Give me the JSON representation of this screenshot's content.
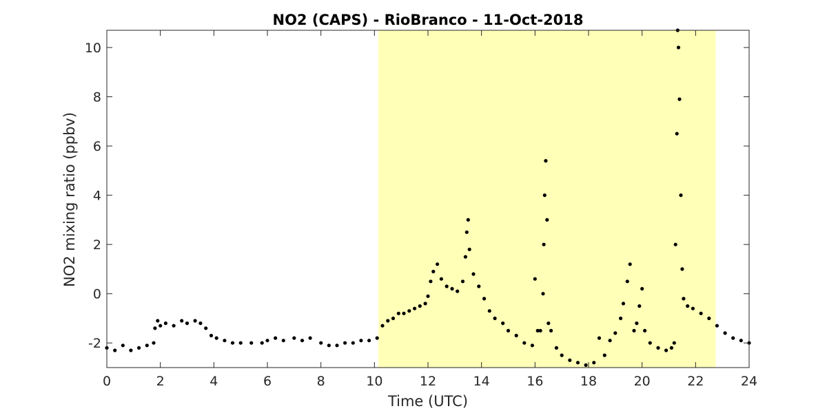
{
  "chart_data": {
    "type": "scatter",
    "title": "NO2 (CAPS) - RioBranco - 11-Oct-2018",
    "xlabel": "Time (UTC)",
    "ylabel": "NO2 mixing ratio (ppbv)",
    "xlim": [
      0,
      24
    ],
    "ylim": [
      -3,
      10.7
    ],
    "xticks": [
      "0",
      "2",
      "4",
      "6",
      "8",
      "10",
      "12",
      "14",
      "16",
      "18",
      "20",
      "22",
      "24"
    ],
    "yticks": [
      "-2",
      "0",
      "2",
      "4",
      "6",
      "8",
      "10"
    ],
    "grid": false,
    "shaded_region": {
      "x_start": 10.15,
      "x_end": 22.75,
      "color": "#ffffb8"
    },
    "marker_color": "#000000",
    "series": [
      {
        "points": [
          [
            0.0,
            -2.2
          ],
          [
            0.3,
            -2.3
          ],
          [
            0.6,
            -2.1
          ],
          [
            0.9,
            -2.3
          ],
          [
            1.2,
            -2.2
          ],
          [
            1.5,
            -2.1
          ],
          [
            1.75,
            -2.0
          ],
          [
            1.8,
            -1.4
          ],
          [
            1.9,
            -1.1
          ],
          [
            2.0,
            -1.3
          ],
          [
            2.2,
            -1.2
          ],
          [
            2.5,
            -1.3
          ],
          [
            2.8,
            -1.1
          ],
          [
            3.0,
            -1.2
          ],
          [
            3.3,
            -1.1
          ],
          [
            3.5,
            -1.2
          ],
          [
            3.7,
            -1.4
          ],
          [
            3.9,
            -1.7
          ],
          [
            4.1,
            -1.8
          ],
          [
            4.4,
            -1.9
          ],
          [
            4.7,
            -2.0
          ],
          [
            5.0,
            -2.0
          ],
          [
            5.4,
            -2.0
          ],
          [
            5.8,
            -2.0
          ],
          [
            6.0,
            -1.9
          ],
          [
            6.3,
            -1.8
          ],
          [
            6.6,
            -1.9
          ],
          [
            7.0,
            -1.8
          ],
          [
            7.3,
            -1.9
          ],
          [
            7.6,
            -1.8
          ],
          [
            8.0,
            -2.0
          ],
          [
            8.3,
            -2.1
          ],
          [
            8.6,
            -2.1
          ],
          [
            8.9,
            -2.0
          ],
          [
            9.2,
            -2.0
          ],
          [
            9.5,
            -1.9
          ],
          [
            9.8,
            -1.9
          ],
          [
            10.1,
            -1.8
          ],
          [
            10.3,
            -1.3
          ],
          [
            10.5,
            -1.1
          ],
          [
            10.7,
            -1.0
          ],
          [
            10.9,
            -0.8
          ],
          [
            11.1,
            -0.8
          ],
          [
            11.3,
            -0.7
          ],
          [
            11.5,
            -0.6
          ],
          [
            11.7,
            -0.5
          ],
          [
            11.9,
            -0.4
          ],
          [
            12.0,
            -0.1
          ],
          [
            12.1,
            0.5
          ],
          [
            12.2,
            0.9
          ],
          [
            12.35,
            1.2
          ],
          [
            12.5,
            0.6
          ],
          [
            12.7,
            0.3
          ],
          [
            12.9,
            0.2
          ],
          [
            13.1,
            0.1
          ],
          [
            13.3,
            0.5
          ],
          [
            13.4,
            1.5
          ],
          [
            13.45,
            2.5
          ],
          [
            13.5,
            3.0
          ],
          [
            13.55,
            1.8
          ],
          [
            13.7,
            0.8
          ],
          [
            13.9,
            0.3
          ],
          [
            14.1,
            -0.2
          ],
          [
            14.3,
            -0.7
          ],
          [
            14.5,
            -1.0
          ],
          [
            14.8,
            -1.2
          ],
          [
            15.0,
            -1.5
          ],
          [
            15.3,
            -1.7
          ],
          [
            15.6,
            -2.0
          ],
          [
            15.9,
            -2.1
          ],
          [
            16.0,
            0.6
          ],
          [
            16.1,
            -1.5
          ],
          [
            16.2,
            -1.5
          ],
          [
            16.3,
            0.0
          ],
          [
            16.33,
            2.0
          ],
          [
            16.36,
            4.0
          ],
          [
            16.4,
            5.4
          ],
          [
            16.45,
            3.0
          ],
          [
            16.5,
            -1.2
          ],
          [
            16.6,
            -1.5
          ],
          [
            16.8,
            -2.2
          ],
          [
            17.0,
            -2.5
          ],
          [
            17.3,
            -2.7
          ],
          [
            17.6,
            -2.8
          ],
          [
            17.9,
            -2.9
          ],
          [
            18.2,
            -2.8
          ],
          [
            18.4,
            -1.8
          ],
          [
            18.6,
            -2.5
          ],
          [
            18.8,
            -1.9
          ],
          [
            19.0,
            -1.6
          ],
          [
            19.2,
            -1.0
          ],
          [
            19.3,
            -0.4
          ],
          [
            19.45,
            0.5
          ],
          [
            19.55,
            1.2
          ],
          [
            19.7,
            -1.5
          ],
          [
            19.8,
            -1.2
          ],
          [
            19.9,
            -0.5
          ],
          [
            20.0,
            0.2
          ],
          [
            20.1,
            -1.5
          ],
          [
            20.3,
            -2.0
          ],
          [
            20.6,
            -2.2
          ],
          [
            20.9,
            -2.3
          ],
          [
            21.1,
            -2.2
          ],
          [
            21.2,
            -2.0
          ],
          [
            21.25,
            2.0
          ],
          [
            21.3,
            6.5
          ],
          [
            21.33,
            10.7
          ],
          [
            21.36,
            10.0
          ],
          [
            21.4,
            7.9
          ],
          [
            21.45,
            4.0
          ],
          [
            21.5,
            1.0
          ],
          [
            21.55,
            -0.2
          ],
          [
            21.7,
            -0.5
          ],
          [
            21.9,
            -0.6
          ],
          [
            22.2,
            -0.8
          ],
          [
            22.5,
            -1.0
          ],
          [
            22.8,
            -1.3
          ],
          [
            23.1,
            -1.6
          ],
          [
            23.4,
            -1.8
          ],
          [
            23.7,
            -1.9
          ],
          [
            24.0,
            -2.0
          ]
        ]
      }
    ]
  }
}
